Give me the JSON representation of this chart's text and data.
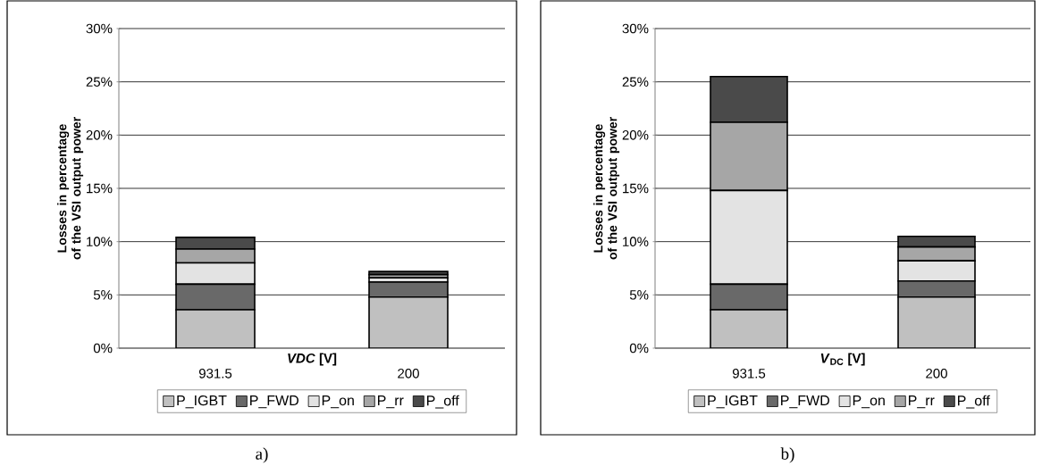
{
  "chart_data": [
    {
      "type": "bar",
      "stacked": true,
      "categories": [
        "931.5",
        "200"
      ],
      "series": [
        {
          "name": "P_IGBT",
          "color": "#c0c0c0",
          "values": [
            3.6,
            4.8
          ]
        },
        {
          "name": "P_FWD",
          "color": "#696969",
          "values": [
            2.4,
            1.4
          ]
        },
        {
          "name": "P_on",
          "color": "#e3e3e3",
          "values": [
            2.0,
            0.4
          ]
        },
        {
          "name": "P_rr",
          "color": "#a6a6a6",
          "values": [
            1.3,
            0.3
          ]
        },
        {
          "name": "P_off",
          "color": "#4a4a4a",
          "values": [
            1.1,
            0.3
          ]
        }
      ],
      "ylim": [
        0,
        30
      ],
      "yticks": [
        {
          "value": 0,
          "label": "0%"
        },
        {
          "value": 5,
          "label": "5%"
        },
        {
          "value": 10,
          "label": "10%"
        },
        {
          "value": 15,
          "label": "15%"
        },
        {
          "value": 20,
          "label": "20%"
        },
        {
          "value": 25,
          "label": "25%"
        },
        {
          "value": 30,
          "label": "30%"
        }
      ],
      "xlabel": "*VDC*  [V]",
      "ylabel": "Losses in percentage of the VSI output power",
      "grid": "y",
      "legend": "bottom",
      "annotations": [
        "a)"
      ]
    },
    {
      "type": "bar",
      "stacked": true,
      "categories": [
        "931.5",
        "200"
      ],
      "series": [
        {
          "name": "P_IGBT",
          "color": "#c0c0c0",
          "values": [
            3.6,
            4.8
          ]
        },
        {
          "name": "P_FWD",
          "color": "#696969",
          "values": [
            2.4,
            1.5
          ]
        },
        {
          "name": "P_on",
          "color": "#e3e3e3",
          "values": [
            8.8,
            1.9
          ]
        },
        {
          "name": "P_rr",
          "color": "#a6a6a6",
          "values": [
            6.4,
            1.3
          ]
        },
        {
          "name": "P_off",
          "color": "#4a4a4a",
          "values": [
            4.3,
            1.0
          ]
        }
      ],
      "ylim": [
        0,
        30
      ],
      "yticks": [
        {
          "value": 0,
          "label": "0%"
        },
        {
          "value": 5,
          "label": "5%"
        },
        {
          "value": 10,
          "label": "10%"
        },
        {
          "value": 15,
          "label": "15%"
        },
        {
          "value": 20,
          "label": "20%"
        },
        {
          "value": 25,
          "label": "25%"
        },
        {
          "value": 30,
          "label": "30%"
        }
      ],
      "xlabel": "*V*$_{DC}$  [V]",
      "ylabel": "Losses in percentage of the VSI output power",
      "grid": "y",
      "legend": "bottom",
      "annotations": [
        "b)"
      ]
    }
  ]
}
